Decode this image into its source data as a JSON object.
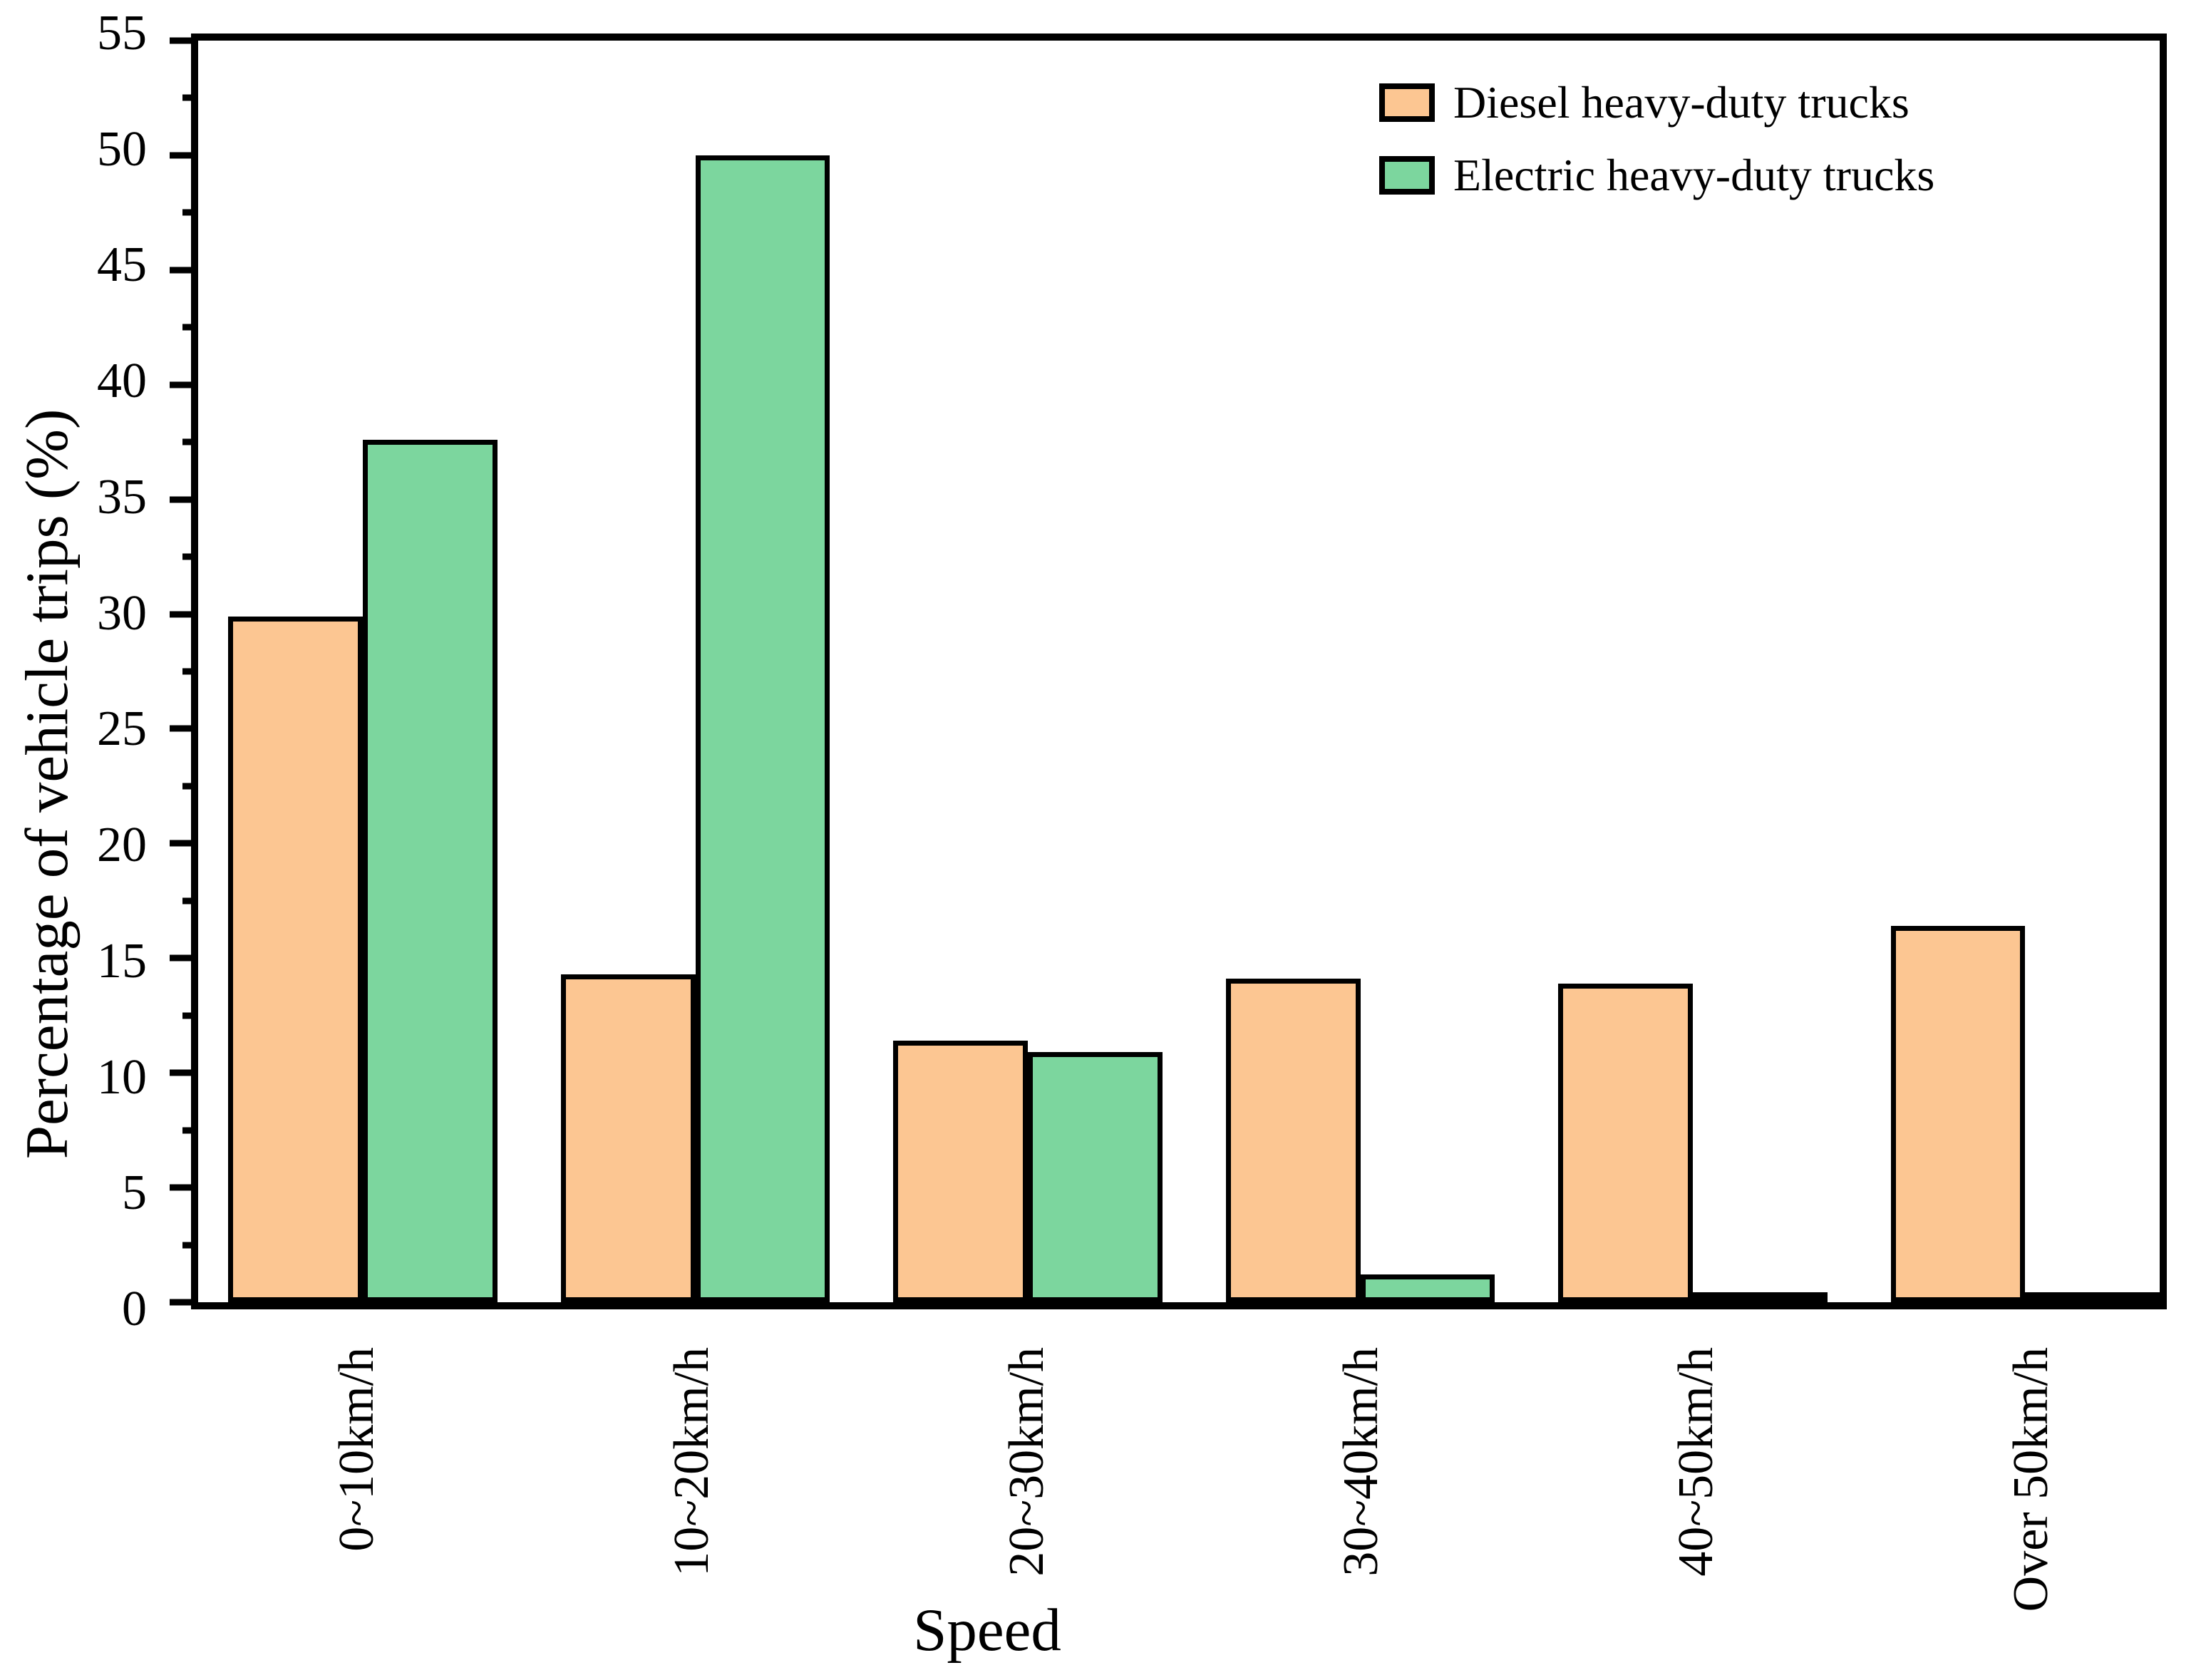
{
  "chart_data": {
    "type": "bar",
    "title": "",
    "xlabel": "Speed",
    "ylabel": "Percentage of vehicle trips (%)",
    "categories": [
      "0~10km/h",
      "10~20km/h",
      "20~30km/h",
      "30~40km/h",
      "40~50km/h",
      "Over 50km/h"
    ],
    "series": [
      {
        "name": "Diesel heavy-duty trucks",
        "color": "#FCC692",
        "values": [
          29.9,
          14.3,
          11.4,
          14.1,
          13.9,
          16.4
        ]
      },
      {
        "name": "Electric heavy-duty trucks",
        "color": "#7CD69E",
        "values": [
          37.6,
          50.0,
          10.9,
          1.2,
          0.3,
          0.1
        ]
      }
    ],
    "ylim": [
      0,
      55
    ],
    "yticks": [
      0,
      5,
      10,
      15,
      20,
      25,
      30,
      35,
      40,
      45,
      50,
      55
    ],
    "ytick_labels": [
      "0",
      "5",
      "10",
      "15",
      "20",
      "25",
      "30",
      "35",
      "40",
      "45",
      "50",
      "55"
    ],
    "minor_ytick_interval": 2.5,
    "grid": false,
    "legend_position": "top-right",
    "bar_outline_color": "#000000"
  },
  "legend": {
    "items": [
      {
        "label": "Diesel heavy-duty trucks",
        "color": "#FCC692"
      },
      {
        "label": "Electric heavy-duty trucks",
        "color": "#7CD69E"
      }
    ]
  },
  "colors": {
    "axis": "#000000",
    "background": "#FFFFFF"
  }
}
